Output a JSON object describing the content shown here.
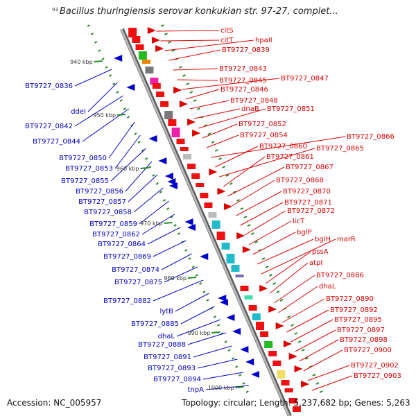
{
  "title": "Bacillus thuringiensis serovar konkukian str. 97-27, complet...",
  "edge_number": "93",
  "accession": "Accession: NC_005957",
  "summary": "Topology: circular; Length: 5,237,682 bp; Genes: 5,263",
  "colors": {
    "forward": "#dd0000",
    "reverse": "#0000cc",
    "tick": "#228822",
    "backbone": "#8c8c8c"
  },
  "scale": {
    "labels": [
      "940 kbp",
      "950 kbp",
      "960 kbp",
      "970 kbp",
      "980 kbp",
      "990 kbp",
      "1000 kbp"
    ]
  },
  "forward_genes": [
    "citS",
    "citT",
    "hpaII",
    "BT9727_0839",
    "BT9727_0843",
    "BT9727_0845",
    "BT9727_0847",
    "BT9727_0846",
    "BT9727_0848",
    "dnaB",
    "BT9727_0851",
    "BT9727_0852",
    "BT9727_0854",
    "BT9727_0866",
    "BT9727_0860",
    "BT9727_0865",
    "BT9727_0861",
    "BT9727_0867",
    "BT9727_0868",
    "BT9727_0870",
    "BT9727_0871",
    "BT9727_0872",
    "licT",
    "bglP",
    "bglH",
    "marR",
    "pssA",
    "atpI",
    "BT9727_0886",
    "dhaL",
    "BT9727_0890",
    "BT9727_0892",
    "BT9727_0895",
    "BT9727_0897",
    "BT9727_0898",
    "BT9727_0900",
    "BT9727_0902",
    "BT9727_0903"
  ],
  "reverse_genes": [
    "BT9727_0836",
    "ddeI",
    "BT9727_0842",
    "BT9727_0844",
    "BT9727_0850",
    "BT9727_0853",
    "BT9727_0855",
    "BT9727_0856",
    "BT9727_0857",
    "BT9727_0858",
    "BT9727_0859",
    "BT9727_0862",
    "BT9727_0864",
    "BT9727_0869",
    "BT9727_0874",
    "BT9727_0875",
    "BT9727_0882",
    "lytB",
    "BT9727_0885",
    "dhaL",
    "BT9727_0888",
    "BT9727_0891",
    "BT9727_0893",
    "BT9727_0894",
    "tnpA"
  ]
}
